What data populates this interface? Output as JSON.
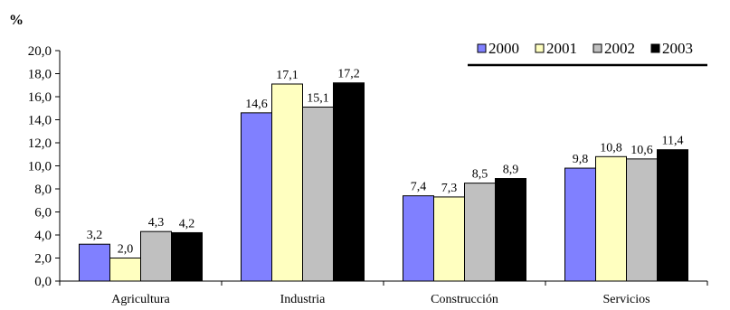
{
  "chart_data": {
    "type": "bar",
    "y_unit": "%",
    "categories": [
      "Agricultura",
      "Industria",
      "Construcción",
      "Servicios"
    ],
    "series": [
      {
        "name": "2000",
        "color": "#8080ff",
        "values": [
          3.2,
          14.6,
          7.4,
          9.8
        ],
        "labels": [
          "3,2",
          "14,6",
          "7,4",
          "9,8"
        ]
      },
      {
        "name": "2001",
        "color": "#ffffc0",
        "values": [
          2.0,
          17.1,
          7.3,
          10.8
        ],
        "labels": [
          "2,0",
          "17,1",
          "7,3",
          "10,8"
        ]
      },
      {
        "name": "2002",
        "color": "#c0c0c0",
        "values": [
          4.3,
          15.1,
          8.5,
          10.6
        ],
        "labels": [
          "4,3",
          "15,1",
          "8,5",
          "10,6"
        ]
      },
      {
        "name": "2003",
        "color": "#000000",
        "values": [
          4.2,
          17.2,
          8.9,
          11.4
        ],
        "labels": [
          "4,2",
          "17,2",
          "8,9",
          "11,4"
        ]
      }
    ],
    "ylim": [
      0,
      20
    ],
    "y_ticks": [
      "0,0",
      "2,0",
      "4,0",
      "6,0",
      "8,0",
      "10,0",
      "12,0",
      "14,0",
      "16,0",
      "18,0",
      "20,0"
    ],
    "grid": false,
    "legend_position": "top-right"
  }
}
